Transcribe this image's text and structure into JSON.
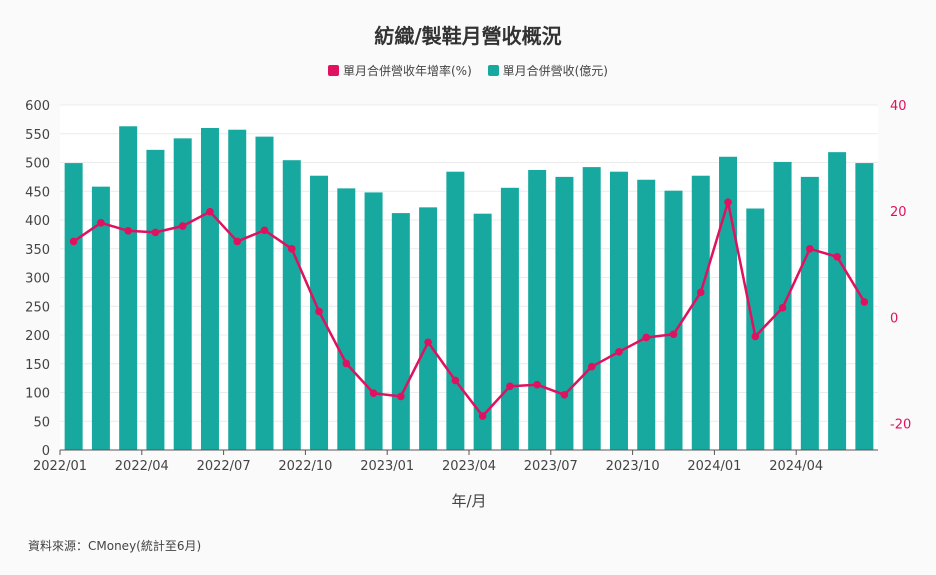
{
  "title": "紡織/製鞋月營收概況",
  "legend": {
    "line_label": "單月合併營收年增率(%)",
    "bar_label": "單月合併營收(億元)"
  },
  "source": "資料來源：CMoney(統計至6月)",
  "colors": {
    "bar": "#17a9a0",
    "line": "#e0115f",
    "right_axis": "#e0115f"
  },
  "chart_data": {
    "type": "bar+line",
    "title": "紡織/製鞋月營收概況",
    "xlabel": "年/月",
    "categories": [
      "2022/01",
      "2022/02",
      "2022/03",
      "2022/04",
      "2022/05",
      "2022/06",
      "2022/07",
      "2022/08",
      "2022/09",
      "2022/10",
      "2022/11",
      "2022/12",
      "2023/01",
      "2023/02",
      "2023/03",
      "2023/04",
      "2023/05",
      "2023/06",
      "2023/07",
      "2023/08",
      "2023/09",
      "2023/10",
      "2023/11",
      "2023/12",
      "2024/01",
      "2024/02",
      "2024/03",
      "2024/04",
      "2024/05",
      "2024/06"
    ],
    "x_tick_labels": [
      "2022/01",
      "2022/04",
      "2022/07",
      "2022/10",
      "2023/01",
      "2023/04",
      "2023/07",
      "2023/10",
      "2024/01",
      "2024/04"
    ],
    "series": [
      {
        "name": "單月合併營收(億元)",
        "axis": "left",
        "type": "bar",
        "values": [
          499,
          458,
          563,
          522,
          542,
          560,
          557,
          545,
          504,
          477,
          455,
          448,
          412,
          422,
          484,
          411,
          456,
          487,
          475,
          492,
          484,
          470,
          451,
          477,
          510,
          420,
          501,
          475,
          518,
          499
        ]
      },
      {
        "name": "單月合併營收年增率(%)",
        "axis": "right",
        "type": "line",
        "values": [
          14.3,
          17.8,
          16.3,
          16.0,
          17.2,
          19.9,
          14.3,
          16.4,
          12.9,
          1.1,
          -8.7,
          -14.3,
          -14.9,
          -4.7,
          -11.9,
          -18.6,
          -13.0,
          -12.7,
          -14.6,
          -9.3,
          -6.5,
          -3.8,
          -3.2,
          4.7,
          21.7,
          -3.6,
          1.8,
          12.9,
          11.4,
          2.9
        ]
      }
    ],
    "y_left": {
      "min": 0,
      "max": 600,
      "ticks": [
        0,
        50,
        100,
        150,
        200,
        250,
        300,
        350,
        400,
        450,
        500,
        550,
        600
      ]
    },
    "y_right": {
      "min": -25,
      "max": 40,
      "ticks": [
        -20,
        0,
        20,
        40
      ]
    }
  }
}
